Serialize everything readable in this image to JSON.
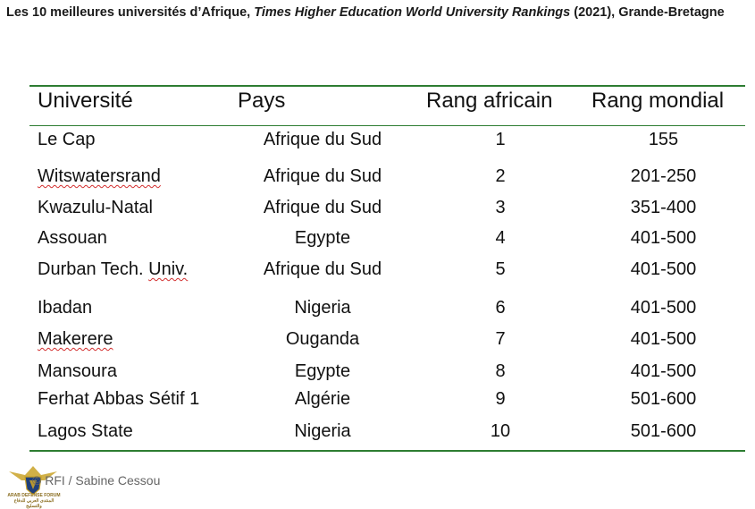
{
  "caption": {
    "prefix": "Les 10 meilleures universités d’Afrique, ",
    "source": "Times Higher Education World University Rankings",
    "suffix": " (2021), Grande-Bretagne"
  },
  "table": {
    "headers": [
      "Université",
      "Pays",
      "Rang africain",
      "Rang mondial"
    ],
    "rows": [
      [
        "Le Cap",
        "Afrique du Sud",
        "1",
        "155"
      ],
      [
        "Witswatersrand",
        "Afrique du Sud",
        "2",
        "201-250"
      ],
      [
        "Kwazulu-Natal",
        "Afrique du Sud",
        "3",
        "351-400"
      ],
      [
        "Assouan",
        "Egypte",
        "4",
        "401-500"
      ],
      [
        "Durban Tech. Univ.",
        "Afrique du Sud",
        "5",
        "401-500"
      ],
      [
        "Ibadan",
        "Nigeria",
        "6",
        "401-500"
      ],
      [
        "Makerere",
        "Ouganda",
        "7",
        "401-500"
      ],
      [
        "Mansoura",
        "Egypte",
        "8",
        "401-500"
      ],
      [
        "Ferhat Abbas Sétif 1",
        "Algérie",
        "9",
        "501-600"
      ],
      [
        "Lagos State",
        "Nigeria",
        "10",
        "501-600"
      ]
    ]
  },
  "credit": "© RFI / Sabine Cessou",
  "watermark": {
    "name": "ARAB DEFENSE FORUM",
    "arabic": "المنتدى العربي للدفاع والتسليح",
    "accent": "#c9a227"
  },
  "colors": {
    "rule": "#2e7d32",
    "spellcheck": "#d32f2f"
  }
}
